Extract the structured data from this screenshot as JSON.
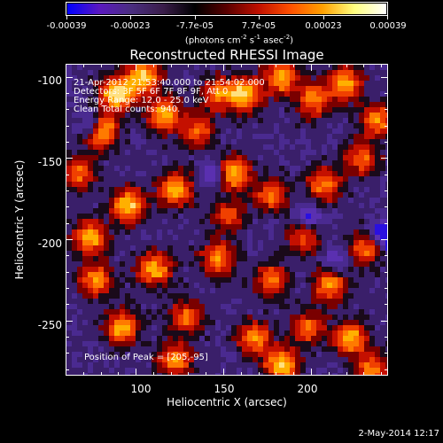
{
  "colorbar": {
    "tick_labels": [
      "-0.00039",
      "-0.00023",
      "-7.7e-05",
      "7.7e-05",
      "0.00023",
      "0.00039"
    ],
    "units_main": "(photons cm",
    "units_exp1": "-2",
    "units_mid1": " s",
    "units_exp2": "-1",
    "units_mid2": " asec",
    "units_exp3": "-2",
    "units_end": ")",
    "colormap": [
      "#0000ff",
      "#5a18c0",
      "#4a2e80",
      "#3a1d4a",
      "#000000",
      "#5a0000",
      "#c01000",
      "#ff5000",
      "#ffa000",
      "#ffff80",
      "#ffffff"
    ]
  },
  "title": "Reconstructed RHESSI Image",
  "overlay": {
    "line1": "21-Apr-2012 21:53:40.000 to 21:54:02.000",
    "line2": "Detectors: 3F 5F 6F 7F 8F 9F, Att 0",
    "line3": "Energy Range: 12.0 - 25.0 keV",
    "line4": "Clean    Total counts: 940.",
    "peak": "Position of Peak = [205,-95]"
  },
  "axes": {
    "x_title": "Heliocentric X (arcsec)",
    "y_title": "Heliocentric Y (arcsec)",
    "x_ticks": [
      "100",
      "150",
      "200"
    ],
    "y_ticks": [
      "-100",
      "-150",
      "-200",
      "-250"
    ],
    "xlim": [
      60,
      244
    ],
    "ylim": [
      -284,
      -92
    ]
  },
  "footer": {
    "date": "2-May-2014 12:17"
  }
}
